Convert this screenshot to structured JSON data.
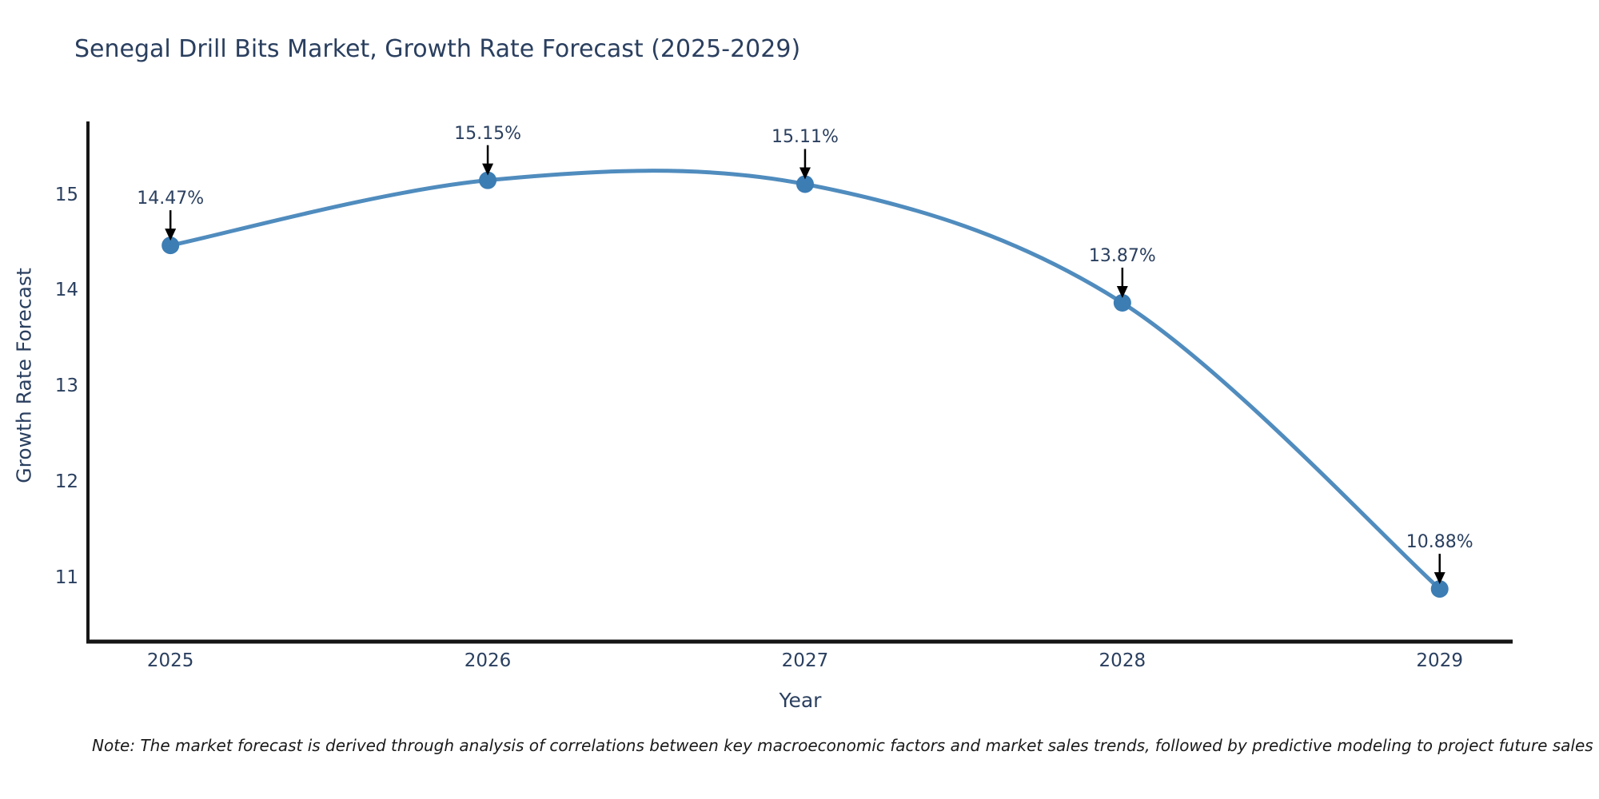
{
  "title": "Senegal Drill Bits Market, Growth Rate Forecast (2025-2029)",
  "note": "Note: The market forecast is derived through analysis of correlations between key macroeconomic factors and market sales trends, followed by predictive modeling to project future sales",
  "colors": {
    "line": "#508cbe",
    "marker": "#3c7db4",
    "axis": "#161616",
    "text": "#2a3f5f",
    "arrow": "#000000",
    "background": "#ffffff"
  },
  "chart_data": {
    "type": "line",
    "x": [
      2025,
      2026,
      2027,
      2028,
      2029
    ],
    "categories": [
      "2025",
      "2026",
      "2027",
      "2028",
      "2029"
    ],
    "values": [
      14.47,
      15.15,
      15.11,
      13.87,
      10.88
    ],
    "point_labels": [
      "14.47%",
      "15.15%",
      "15.11%",
      "13.87%",
      "10.88%"
    ],
    "title": "Senegal Drill Bits Market, Growth Rate Forecast (2025-2029)",
    "xlabel": "Year",
    "ylabel": "Growth Rate Forecast",
    "yticks": [
      11,
      12,
      13,
      14,
      15
    ],
    "xlim": [
      2024.74,
      2029.23
    ],
    "ylim": [
      10.33,
      15.74
    ],
    "grid": false,
    "legend": "none",
    "line_shape": "spline",
    "marker": "circle"
  }
}
